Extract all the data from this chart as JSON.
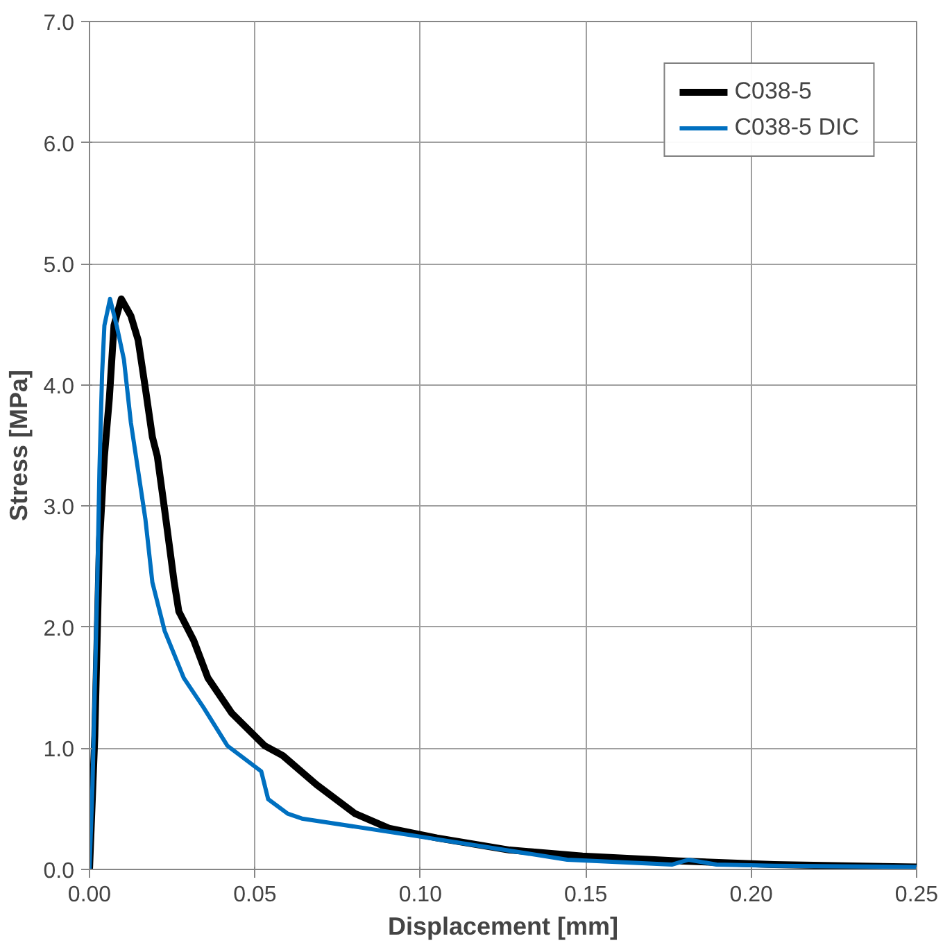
{
  "chart_data": {
    "type": "line",
    "xlabel": "Displacement [mm]",
    "ylabel": "Stress [MPa]",
    "xlim": [
      0,
      0.25
    ],
    "ylim": [
      0,
      7.0
    ],
    "xticks": [
      {
        "value": 0,
        "label": "0.00"
      },
      0.05,
      {
        "value": 0.1,
        "label": "0.10"
      },
      0.15,
      {
        "value": 0.2,
        "label": "0.20"
      },
      0.25
    ],
    "yticks": [
      {
        "value": 0,
        "label": "0.0"
      },
      {
        "value": 1,
        "label": "1.0"
      },
      {
        "value": 2,
        "label": "2.0"
      },
      {
        "value": 3,
        "label": "3.0"
      },
      {
        "value": 4,
        "label": "4.0"
      },
      {
        "value": 5,
        "label": "5.0"
      },
      {
        "value": 6,
        "label": "6.0"
      },
      {
        "value": 7,
        "label": "7.0"
      }
    ],
    "grid": true,
    "legend": "top right",
    "marker": "none",
    "line_style": "solid",
    "series": [
      {
        "name": "C038-5",
        "color": "#000000",
        "x": [
          0,
          0.0016,
          0.003,
          0.0045,
          0.006,
          0.0074,
          0.0096,
          0.0125,
          0.0147,
          0.0169,
          0.019,
          0.0205,
          0.0227,
          0.0256,
          0.027,
          0.0315,
          0.0358,
          0.043,
          0.053,
          0.0584,
          0.0686,
          0.0803,
          0.0905,
          0.105,
          0.127,
          0.149,
          0.178,
          0.207,
          0.25
        ],
        "values": [
          0,
          1.1,
          2.69,
          3.41,
          3.89,
          4.49,
          4.71,
          4.57,
          4.37,
          3.97,
          3.57,
          3.41,
          2.97,
          2.37,
          2.13,
          1.89,
          1.58,
          1.29,
          1.02,
          0.94,
          0.7,
          0.46,
          0.34,
          0.26,
          0.16,
          0.11,
          0.07,
          0.04,
          0.02
        ]
      },
      {
        "name": "C038-5 DIC",
        "color": "#0070c0",
        "x": [
          0,
          0.0009,
          0.0023,
          0.003,
          0.0038,
          0.0045,
          0.0062,
          0.0082,
          0.0104,
          0.0125,
          0.0147,
          0.0169,
          0.019,
          0.0227,
          0.0285,
          0.0344,
          0.0417,
          0.0519,
          0.054,
          0.0599,
          0.0642,
          0.0978,
          0.1444,
          0.176,
          0.181,
          0.1895,
          0.207,
          0.25
        ],
        "values": [
          0,
          0.7,
          2.29,
          3.29,
          4.09,
          4.49,
          4.71,
          4.49,
          4.21,
          3.69,
          3.29,
          2.89,
          2.37,
          1.97,
          1.58,
          1.34,
          1.02,
          0.81,
          0.58,
          0.46,
          0.42,
          0.28,
          0.08,
          0.04,
          0.08,
          0.04,
          0.03,
          0.02
        ]
      }
    ]
  }
}
